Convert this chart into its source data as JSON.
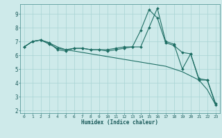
{
  "xlabel": "Humidex (Indice chaleur)",
  "xlim": [
    -0.5,
    23.5
  ],
  "ylim": [
    1.8,
    9.7
  ],
  "yticks": [
    2,
    3,
    4,
    5,
    6,
    7,
    8,
    9
  ],
  "xticks": [
    0,
    1,
    2,
    3,
    4,
    5,
    6,
    7,
    8,
    9,
    10,
    11,
    12,
    13,
    14,
    15,
    16,
    17,
    18,
    19,
    20,
    21,
    22,
    23
  ],
  "background_color": "#ceeaea",
  "grid_color": "#a8d4d4",
  "line_color": "#1e6e64",
  "lines": [
    {
      "x": [
        0,
        1,
        2,
        3,
        4,
        5,
        6,
        7,
        8,
        9,
        10,
        11,
        12,
        13,
        14,
        15,
        16,
        17,
        18,
        19,
        20,
        21,
        22,
        23
      ],
      "y": [
        6.6,
        7.0,
        7.1,
        6.9,
        6.4,
        6.3,
        6.5,
        6.5,
        6.4,
        6.4,
        6.3,
        6.4,
        6.5,
        6.6,
        7.8,
        9.3,
        8.7,
        6.9,
        6.7,
        6.2,
        6.1,
        4.2,
        4.2,
        2.4
      ],
      "has_markers": true
    },
    {
      "x": [
        0,
        1,
        2,
        3,
        4,
        5,
        6,
        7,
        8,
        9,
        10,
        11,
        12,
        13,
        14,
        15,
        16,
        17,
        18,
        19,
        20,
        21,
        22,
        23
      ],
      "y": [
        6.6,
        7.0,
        7.1,
        6.8,
        6.5,
        6.4,
        6.5,
        6.5,
        6.4,
        6.4,
        6.4,
        6.5,
        6.6,
        6.6,
        6.6,
        8.0,
        9.4,
        7.0,
        6.8,
        5.0,
        6.1,
        4.3,
        4.2,
        2.5
      ],
      "has_markers": true
    },
    {
      "x": [
        0,
        1,
        2,
        3,
        4,
        5,
        6,
        7,
        8,
        9,
        10,
        11,
        12,
        13,
        14,
        15,
        16,
        17,
        18,
        19,
        20,
        21,
        22,
        23
      ],
      "y": [
        6.6,
        7.0,
        7.1,
        6.9,
        6.6,
        6.4,
        6.3,
        6.2,
        6.1,
        6.0,
        5.9,
        5.8,
        5.7,
        5.6,
        5.5,
        5.4,
        5.3,
        5.2,
        5.0,
        4.8,
        4.5,
        4.2,
        3.5,
        2.4
      ],
      "has_markers": false
    }
  ]
}
